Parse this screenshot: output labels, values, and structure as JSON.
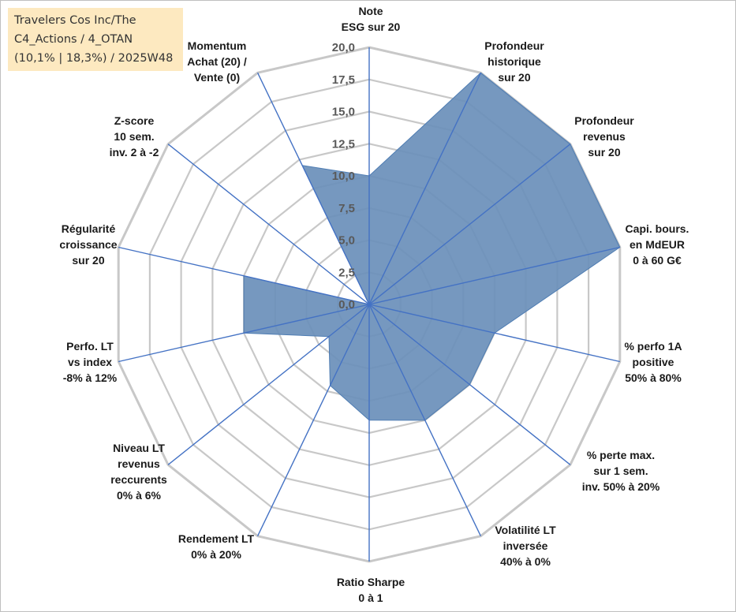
{
  "title_lines": [
    "Travelers Cos Inc/The",
    "C4_Actions / 4_OTAN",
    "(10,1% | 18,3%) / 2025W48"
  ],
  "chart_data": {
    "type": "radar",
    "range": [
      0,
      20
    ],
    "ticks": [
      "0,0",
      "2,5",
      "5,0",
      "7,5",
      "10,0",
      "12,5",
      "15,0",
      "17,5",
      "20,0"
    ],
    "grid": true,
    "fill_color": "#6a8fba",
    "stroke_color": "#4f7db3",
    "grid_color": "#c8c8c8",
    "spoke_color": "#4472c4",
    "categories": [
      [
        "Note",
        "ESG sur 20"
      ],
      [
        "Profondeur",
        "historique",
        "sur 20"
      ],
      [
        "Profondeur",
        "revenus",
        "sur 20"
      ],
      [
        "Capi. bours.",
        "en MdEUR",
        "0 à 60 G€"
      ],
      [
        "% perfo 1A",
        "positive",
        "50% à 80%"
      ],
      [
        "% perte max.",
        "sur 1 sem.",
        "inv. 50% à 20%"
      ],
      [
        "Volatilité LT",
        "inversée",
        "40% à 0%"
      ],
      [
        "Ratio Sharpe",
        "0 à 1"
      ],
      [
        "Rendement LT",
        "0% à 20%"
      ],
      [
        "Niveau LT",
        "revenus",
        "reccurents",
        "0% à 6%"
      ],
      [
        "Perfo. LT",
        "vs index",
        "-8% à 12%"
      ],
      [
        "Régularité",
        "croissance",
        "sur 20"
      ],
      [
        "Z-score",
        "10 sem.",
        "inv. 2 à -2"
      ],
      [
        "Momentum",
        "Achat (20) /",
        "Vente (0)"
      ]
    ],
    "values": [
      10,
      20,
      20,
      20,
      10,
      10,
      10,
      9,
      7,
      4,
      10,
      10,
      0,
      12
    ]
  }
}
